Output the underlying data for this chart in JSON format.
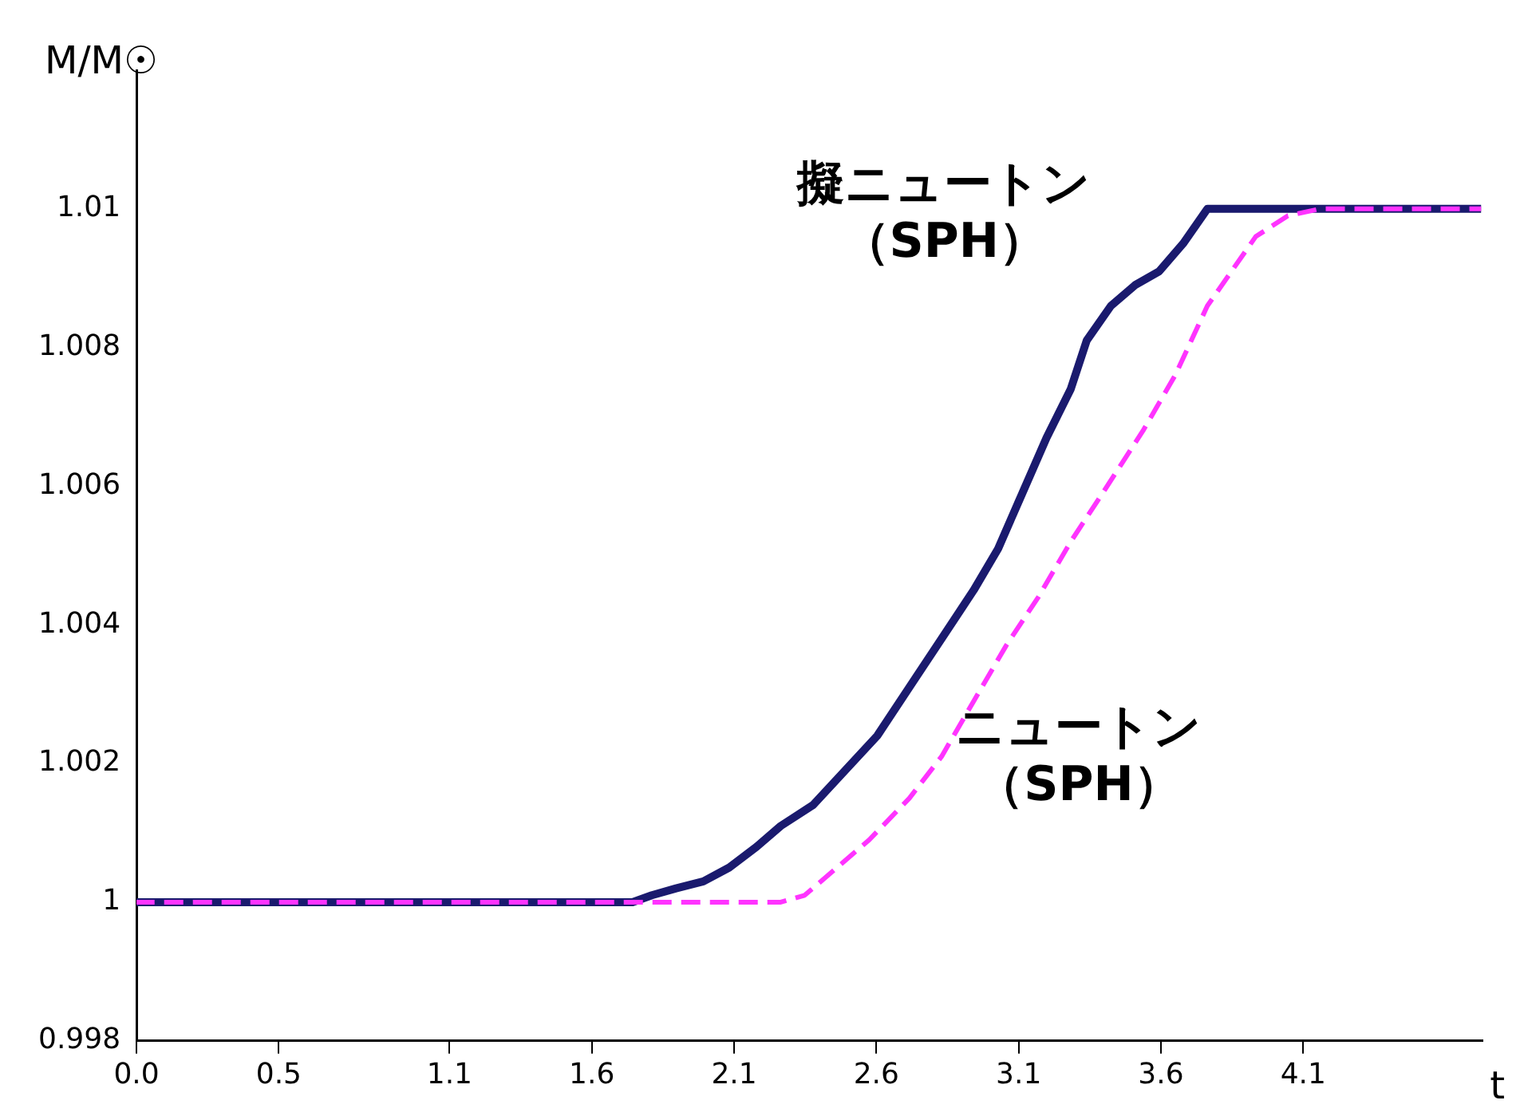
{
  "chart_data": {
    "type": "line",
    "ylabel": "M/M☉",
    "xlabel": "t",
    "xlim": [
      0,
      4.73
    ],
    "xticks": [
      {
        "value": 0,
        "label": "0.0"
      },
      {
        "value": 0.5,
        "label": "0.5"
      },
      {
        "value": 1.1,
        "label": "1.1"
      },
      {
        "value": 1.6,
        "label": "1.6"
      },
      {
        "value": 2.1,
        "label": "2.1"
      },
      {
        "value": 2.6,
        "label": "2.6"
      },
      {
        "value": 3.1,
        "label": "3.1"
      },
      {
        "value": 3.6,
        "label": "3.6"
      },
      {
        "value": 4.1,
        "label": "4.1"
      }
    ],
    "ylim": [
      0.998,
      1.012
    ],
    "yticks": [
      {
        "value": 0.998,
        "label": "0.998"
      },
      {
        "value": 1,
        "label": "1"
      },
      {
        "value": 1.002,
        "label": "1.002"
      },
      {
        "value": 1.004,
        "label": "1.004"
      },
      {
        "value": 1.006,
        "label": "1.006"
      },
      {
        "value": 1.008,
        "label": "1.008"
      },
      {
        "value": 1.01,
        "label": "1.01"
      }
    ],
    "grid": false,
    "legend": false,
    "marker": "none",
    "series": [
      {
        "name": "擬ニュートン（SPH）",
        "color": "#1a1a6e",
        "line_style": "solid",
        "x": [
          0,
          1.743,
          1.811,
          1.896,
          1.992,
          2.083,
          2.179,
          2.264,
          2.377,
          2.49,
          2.603,
          2.716,
          2.829,
          2.942,
          3.028,
          3.113,
          3.198,
          3.283,
          3.339,
          3.424,
          3.509,
          3.594,
          3.678,
          3.763,
          4.725
        ],
        "values": [
          1,
          1,
          1.0001,
          1.0002,
          1.0003,
          1.0005,
          1.0008,
          1.0011,
          1.0014,
          1.0019,
          1.0024,
          1.0031,
          1.0038,
          1.0045,
          1.0051,
          1.0059,
          1.0067,
          1.0074,
          1.0081,
          1.0086,
          1.0089,
          1.0091,
          1.0095,
          1.01,
          1.01
        ]
      },
      {
        "name": "ニュートン（SPH）",
        "color": "#ff33ff",
        "line_style": "dashed",
        "x": [
          0,
          2.264,
          2.348,
          2.462,
          2.575,
          2.716,
          2.829,
          2.942,
          3.056,
          3.169,
          3.283,
          3.395,
          3.537,
          3.65,
          3.763,
          3.848,
          3.933,
          4.046,
          4.159,
          4.725
        ],
        "values": [
          1,
          1,
          1.0001,
          1.0005,
          1.0009,
          1.0015,
          1.0021,
          1.0029,
          1.0037,
          1.0044,
          1.0052,
          1.0059,
          1.0068,
          1.0076,
          1.0086,
          1.0091,
          1.0096,
          1.0099,
          1.01,
          1.01
        ]
      }
    ]
  }
}
